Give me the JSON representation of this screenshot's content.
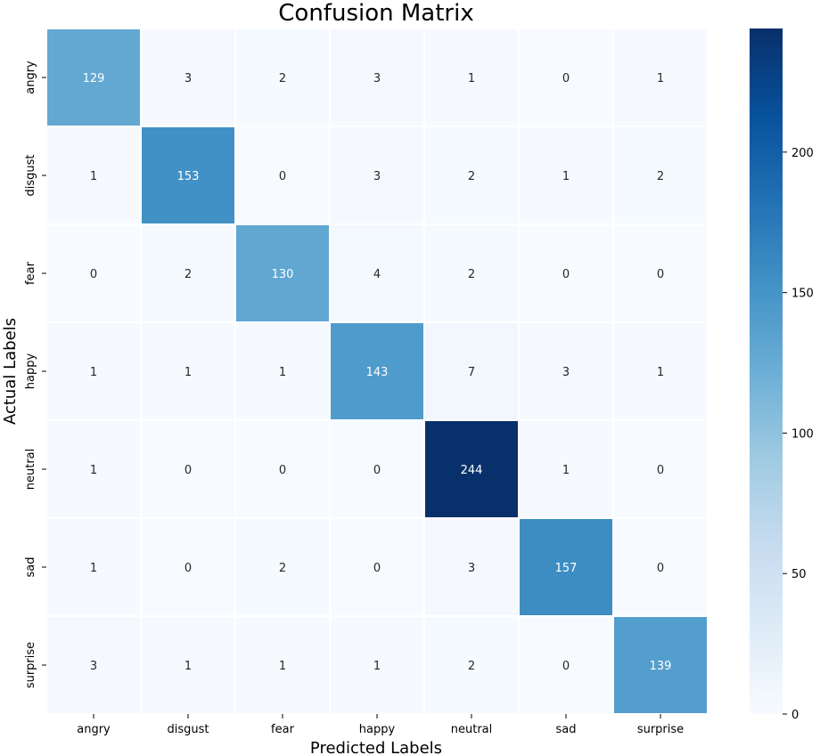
{
  "chart_data": {
    "type": "heatmap",
    "title": "Confusion Matrix",
    "xlabel": "Predicted Labels",
    "ylabel": "Actual Labels",
    "x_categories": [
      "angry",
      "disgust",
      "fear",
      "happy",
      "neutral",
      "sad",
      "surprise"
    ],
    "y_categories": [
      "angry",
      "disgust",
      "fear",
      "happy",
      "neutral",
      "sad",
      "surprise"
    ],
    "values": [
      [
        129,
        3,
        2,
        3,
        1,
        0,
        1
      ],
      [
        1,
        153,
        0,
        3,
        2,
        1,
        2
      ],
      [
        0,
        2,
        130,
        4,
        2,
        0,
        0
      ],
      [
        1,
        1,
        1,
        143,
        7,
        3,
        1
      ],
      [
        1,
        0,
        0,
        0,
        244,
        1,
        0
      ],
      [
        1,
        0,
        2,
        0,
        3,
        157,
        0
      ],
      [
        3,
        1,
        1,
        1,
        2,
        0,
        139
      ]
    ],
    "colorscale": "Blues",
    "color_range": [
      0,
      244
    ],
    "colorbar_ticks": [
      0,
      50,
      100,
      150,
      200
    ],
    "colorbar_tick_labels": [
      "0",
      "50",
      "100",
      "150",
      "200"
    ],
    "colors": {
      "low": "#f7fbff",
      "high": "#08306b",
      "text_light": "#ffffff",
      "text_dark": "#262626",
      "gridline": "#ffffff"
    }
  }
}
